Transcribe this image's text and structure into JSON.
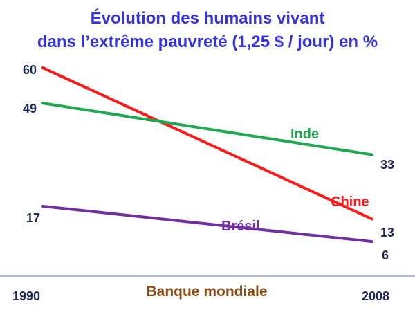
{
  "chart_data": {
    "type": "line",
    "title_line1": "Évolution des humains vivant",
    "title_line2": "dans l’extrême pauvreté (1,25 $ / jour) en %",
    "x": [
      "1990",
      "2008"
    ],
    "series": [
      {
        "name": "Chine",
        "values": [
          60,
          13
        ],
        "color": "#ff1a1a"
      },
      {
        "name": "Inde",
        "values": [
          49,
          33
        ],
        "color": "#1fa84f"
      },
      {
        "name": "Brésil",
        "values": [
          17,
          6
        ],
        "color": "#7030a0"
      }
    ],
    "value_labels": {
      "chine_1990": "60",
      "chine_2008": "13",
      "inde_1990": "49",
      "inde_2008": "33",
      "bresil_1990": "17",
      "bresil_2008": "6"
    },
    "source": "Banque mondiale",
    "grid": false
  }
}
